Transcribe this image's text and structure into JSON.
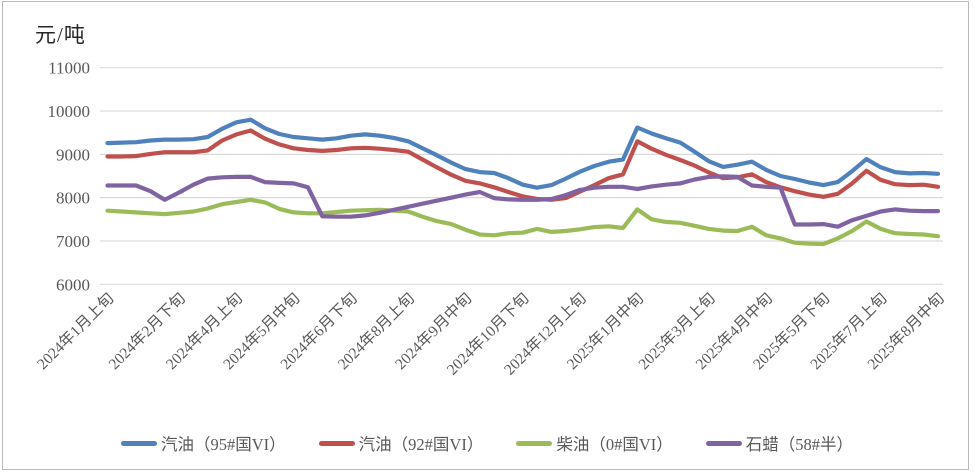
{
  "window": {
    "background": "#ffffff",
    "frame_border_color": "#b9b9b9"
  },
  "chart_data": {
    "type": "line",
    "title": "",
    "unit_label": "元/吨",
    "grid": true,
    "gridline_color": "#D9D9D9",
    "axis_text_color": "#595959",
    "legend_position": "bottom",
    "y_axis": {
      "min": 6000,
      "max": 11000,
      "step": 1000,
      "ticks": [
        11000,
        10000,
        9000,
        8000,
        7000,
        6000
      ]
    },
    "x_axis": {
      "n_points": 59,
      "tick_labels": [
        "2024年1月上旬",
        "2024年2月下旬",
        "2024年4月上旬",
        "2024年5月中旬",
        "2024年6月下旬",
        "2024年8月上旬",
        "2024年9月中旬",
        "2024年10月下旬",
        "2024年12月上旬",
        "2025年1月中旬",
        "2025年3月上旬",
        "2025年4月中旬",
        "2025年5月下旬",
        "2025年7月上旬",
        "2025年8月中旬"
      ],
      "tick_indices": [
        0,
        5,
        9,
        13,
        17,
        21,
        25,
        29,
        33,
        37,
        42,
        46,
        50,
        54,
        58
      ],
      "label_rotation_deg": -45
    },
    "series": [
      {
        "name": "汽油（95#国VI）",
        "color": "#4F81BD",
        "values": [
          9260,
          9270,
          9280,
          9320,
          9340,
          9340,
          9350,
          9400,
          9590,
          9740,
          9800,
          9600,
          9470,
          9400,
          9370,
          9340,
          9370,
          9430,
          9460,
          9430,
          9380,
          9300,
          9140,
          8980,
          8810,
          8660,
          8590,
          8570,
          8450,
          8300,
          8230,
          8290,
          8440,
          8600,
          8730,
          8830,
          8880,
          9620,
          9480,
          9370,
          9270,
          9060,
          8840,
          8710,
          8760,
          8830,
          8640,
          8500,
          8430,
          8350,
          8290,
          8360,
          8610,
          8890,
          8700,
          8590,
          8560,
          8570,
          8550
        ]
      },
      {
        "name": "汽油（92#国VI）",
        "color": "#C0504D",
        "values": [
          8950,
          8950,
          8960,
          9010,
          9050,
          9050,
          9050,
          9090,
          9320,
          9460,
          9550,
          9360,
          9230,
          9140,
          9100,
          9080,
          9100,
          9140,
          9150,
          9130,
          9100,
          9060,
          8880,
          8700,
          8530,
          8390,
          8330,
          8240,
          8130,
          8030,
          7970,
          7950,
          7990,
          8140,
          8290,
          8450,
          8540,
          9300,
          9130,
          8990,
          8870,
          8740,
          8580,
          8450,
          8470,
          8540,
          8360,
          8240,
          8150,
          8070,
          8020,
          8090,
          8330,
          8620,
          8410,
          8310,
          8290,
          8300,
          8250
        ]
      },
      {
        "name": "柴油（0#国VI）",
        "color": "#9BBB59",
        "values": [
          7700,
          7680,
          7660,
          7640,
          7620,
          7650,
          7680,
          7750,
          7850,
          7900,
          7950,
          7890,
          7740,
          7660,
          7640,
          7640,
          7670,
          7700,
          7710,
          7720,
          7700,
          7680,
          7560,
          7460,
          7390,
          7260,
          7150,
          7130,
          7180,
          7190,
          7280,
          7210,
          7230,
          7270,
          7320,
          7340,
          7300,
          7730,
          7500,
          7440,
          7420,
          7350,
          7280,
          7240,
          7230,
          7330,
          7130,
          7060,
          6960,
          6940,
          6930,
          7060,
          7230,
          7450,
          7280,
          7180,
          7160,
          7150,
          7110
        ]
      },
      {
        "name": "石蜡（58#半）",
        "color": "#8064A2",
        "values": [
          8280,
          8280,
          8280,
          8150,
          7950,
          8120,
          8300,
          8440,
          8470,
          8480,
          8480,
          8360,
          8340,
          8330,
          8240,
          7570,
          7560,
          7560,
          7590,
          7650,
          7720,
          7790,
          7860,
          7930,
          8000,
          8070,
          8130,
          7990,
          7960,
          7950,
          7950,
          7970,
          8060,
          8180,
          8230,
          8250,
          8250,
          8200,
          8260,
          8300,
          8330,
          8420,
          8480,
          8490,
          8480,
          8280,
          8250,
          8230,
          7380,
          7380,
          7390,
          7330,
          7480,
          7580,
          7680,
          7730,
          7700,
          7690,
          7690
        ]
      }
    ]
  }
}
